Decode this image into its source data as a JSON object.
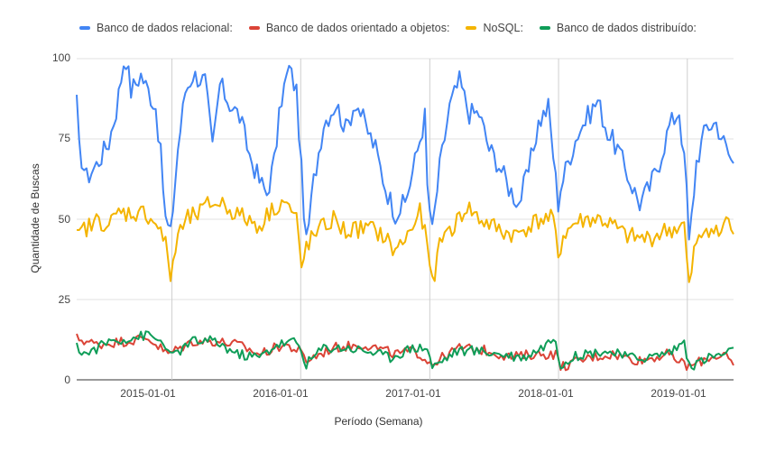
{
  "chart_data": {
    "type": "line",
    "title": "",
    "xlabel": "Período (Semana)",
    "ylabel": "Quantidade de Buscas",
    "ylim": [
      0,
      100
    ],
    "yticks": [
      0,
      25,
      50,
      75,
      100
    ],
    "xticks": [
      "2015-01-01",
      "2016-01-01",
      "2017-01-01",
      "2018-01-01",
      "2019-01-01"
    ],
    "xrange": [
      "2014-04-06",
      "2019-05-12"
    ],
    "grid": true,
    "legend_position": "top",
    "series": [
      {
        "name": "Banco de dados relacional:",
        "color": "#4285f4",
        "key": "relational",
        "anchors": [
          [
            "2014-04-06",
            86
          ],
          [
            "2014-04-13",
            72
          ],
          [
            "2014-05-04",
            63
          ],
          [
            "2014-06-01",
            67
          ],
          [
            "2014-07-06",
            74
          ],
          [
            "2014-07-27",
            84
          ],
          [
            "2014-08-17",
            99
          ],
          [
            "2014-08-24",
            100
          ],
          [
            "2014-09-07",
            90
          ],
          [
            "2014-10-05",
            95
          ],
          [
            "2014-10-26",
            90
          ],
          [
            "2014-11-16",
            85
          ],
          [
            "2014-11-30",
            70
          ],
          [
            "2014-12-14",
            50
          ],
          [
            "2014-12-28",
            45
          ],
          [
            "2015-01-18",
            72
          ],
          [
            "2015-02-08",
            90
          ],
          [
            "2015-03-01",
            95
          ],
          [
            "2015-04-05",
            93
          ],
          [
            "2015-04-26",
            72
          ],
          [
            "2015-05-17",
            92
          ],
          [
            "2015-06-14",
            86
          ],
          [
            "2015-07-12",
            82
          ],
          [
            "2015-08-09",
            70
          ],
          [
            "2015-09-06",
            62
          ],
          [
            "2015-09-27",
            58
          ],
          [
            "2015-10-18",
            68
          ],
          [
            "2015-11-08",
            88
          ],
          [
            "2015-11-29",
            97
          ],
          [
            "2015-12-20",
            90
          ],
          [
            "2016-01-03",
            65
          ],
          [
            "2016-01-17",
            42
          ],
          [
            "2016-02-07",
            62
          ],
          [
            "2016-03-06",
            80
          ],
          [
            "2016-04-10",
            86
          ],
          [
            "2016-05-08",
            78
          ],
          [
            "2016-06-05",
            87
          ],
          [
            "2016-07-03",
            79
          ],
          [
            "2016-07-31",
            72
          ],
          [
            "2016-08-28",
            60
          ],
          [
            "2016-09-25",
            52
          ],
          [
            "2016-10-23",
            55
          ],
          [
            "2016-11-20",
            68
          ],
          [
            "2016-12-18",
            82
          ],
          [
            "2016-12-25",
            60
          ],
          [
            "2017-01-08",
            46
          ],
          [
            "2017-01-29",
            66
          ],
          [
            "2017-02-26",
            85
          ],
          [
            "2017-03-26",
            93
          ],
          [
            "2017-04-23",
            83
          ],
          [
            "2017-05-21",
            83
          ],
          [
            "2017-06-18",
            72
          ],
          [
            "2017-07-16",
            67
          ],
          [
            "2017-08-13",
            60
          ],
          [
            "2017-09-10",
            55
          ],
          [
            "2017-10-08",
            65
          ],
          [
            "2017-11-05",
            80
          ],
          [
            "2017-12-03",
            85
          ],
          [
            "2017-12-31",
            55
          ],
          [
            "2018-01-07",
            60
          ],
          [
            "2018-01-28",
            68
          ],
          [
            "2018-02-25",
            77
          ],
          [
            "2018-03-25",
            82
          ],
          [
            "2018-04-22",
            87
          ],
          [
            "2018-05-20",
            77
          ],
          [
            "2018-06-17",
            72
          ],
          [
            "2018-07-22",
            62
          ],
          [
            "2018-08-19",
            55
          ],
          [
            "2018-09-16",
            60
          ],
          [
            "2018-10-14",
            68
          ],
          [
            "2018-11-11",
            79
          ],
          [
            "2018-12-09",
            84
          ],
          [
            "2018-12-30",
            60
          ],
          [
            "2019-01-06",
            42
          ],
          [
            "2019-01-27",
            68
          ],
          [
            "2019-02-24",
            79
          ],
          [
            "2019-03-24",
            80
          ],
          [
            "2019-04-21",
            72
          ],
          [
            "2019-05-12",
            67
          ]
        ]
      },
      {
        "name": "Banco de dados orientado a objetos:",
        "color": "#db4437",
        "key": "object",
        "anchors": [
          [
            "2014-04-06",
            13
          ],
          [
            "2014-06-01",
            11
          ],
          [
            "2014-08-17",
            12
          ],
          [
            "2014-10-26",
            13
          ],
          [
            "2014-12-21",
            8
          ],
          [
            "2015-03-01",
            12
          ],
          [
            "2015-05-03",
            12
          ],
          [
            "2015-07-05",
            11
          ],
          [
            "2015-09-06",
            8
          ],
          [
            "2015-11-15",
            11
          ],
          [
            "2015-12-27",
            9
          ],
          [
            "2016-01-17",
            6
          ],
          [
            "2016-04-03",
            10
          ],
          [
            "2016-07-03",
            11
          ],
          [
            "2016-09-25",
            8
          ],
          [
            "2016-11-20",
            9
          ],
          [
            "2017-01-08",
            5
          ],
          [
            "2017-03-26",
            10
          ],
          [
            "2017-06-18",
            9
          ],
          [
            "2017-08-20",
            7
          ],
          [
            "2017-10-22",
            8
          ],
          [
            "2017-12-24",
            8
          ],
          [
            "2018-01-07",
            4
          ],
          [
            "2018-04-01",
            7
          ],
          [
            "2018-06-03",
            8
          ],
          [
            "2018-08-19",
            6
          ],
          [
            "2018-11-04",
            8
          ],
          [
            "2019-01-06",
            4
          ],
          [
            "2019-03-03",
            7
          ],
          [
            "2019-04-21",
            8
          ],
          [
            "2019-05-12",
            3
          ]
        ]
      },
      {
        "name": "NoSQL:",
        "color": "#f4b400",
        "key": "nosql",
        "anchors": [
          [
            "2014-04-06",
            44
          ],
          [
            "2014-04-27",
            47
          ],
          [
            "2014-05-18",
            48
          ],
          [
            "2014-06-08",
            50
          ],
          [
            "2014-07-06",
            48
          ],
          [
            "2014-08-03",
            52
          ],
          [
            "2014-09-07",
            52
          ],
          [
            "2014-10-19",
            52
          ],
          [
            "2014-11-23",
            48
          ],
          [
            "2014-12-14",
            42
          ],
          [
            "2014-12-28",
            32
          ],
          [
            "2015-01-18",
            45
          ],
          [
            "2015-02-15",
            50
          ],
          [
            "2015-03-22",
            52
          ],
          [
            "2015-04-19",
            55
          ],
          [
            "2015-05-24",
            55
          ],
          [
            "2015-06-28",
            52
          ],
          [
            "2015-08-02",
            50
          ],
          [
            "2015-09-06",
            48
          ],
          [
            "2015-10-11",
            53
          ],
          [
            "2015-11-15",
            56
          ],
          [
            "2015-12-20",
            50
          ],
          [
            "2016-01-03",
            34
          ],
          [
            "2016-01-17",
            42
          ],
          [
            "2016-02-28",
            47
          ],
          [
            "2016-04-03",
            50
          ],
          [
            "2016-05-08",
            46
          ],
          [
            "2016-06-12",
            47
          ],
          [
            "2016-07-17",
            47
          ],
          [
            "2016-08-21",
            45
          ],
          [
            "2016-09-25",
            40
          ],
          [
            "2016-10-30",
            45
          ],
          [
            "2016-12-04",
            52
          ],
          [
            "2016-12-18",
            46
          ],
          [
            "2017-01-08",
            30
          ],
          [
            "2017-02-05",
            45
          ],
          [
            "2017-03-12",
            48
          ],
          [
            "2017-04-16",
            54
          ],
          [
            "2017-05-21",
            50
          ],
          [
            "2017-06-25",
            48
          ],
          [
            "2017-07-30",
            46
          ],
          [
            "2017-09-03",
            45
          ],
          [
            "2017-10-08",
            48
          ],
          [
            "2017-11-12",
            50
          ],
          [
            "2017-12-17",
            50
          ],
          [
            "2017-12-31",
            38
          ],
          [
            "2018-01-14",
            45
          ],
          [
            "2018-02-18",
            49
          ],
          [
            "2018-03-25",
            50
          ],
          [
            "2018-04-29",
            50
          ],
          [
            "2018-06-03",
            48
          ],
          [
            "2018-07-08",
            45
          ],
          [
            "2018-08-12",
            44
          ],
          [
            "2018-09-16",
            44
          ],
          [
            "2018-10-21",
            46
          ],
          [
            "2018-11-25",
            47
          ],
          [
            "2018-12-23",
            48
          ],
          [
            "2019-01-06",
            28
          ],
          [
            "2019-01-20",
            40
          ],
          [
            "2019-02-24",
            48
          ],
          [
            "2019-03-31",
            45
          ],
          [
            "2019-04-21",
            50
          ],
          [
            "2019-05-12",
            46
          ]
        ]
      },
      {
        "name": "Banco de dados distribuído:",
        "color": "#0f9d58",
        "key": "distributed",
        "anchors": [
          [
            "2014-04-06",
            10
          ],
          [
            "2014-05-04",
            8
          ],
          [
            "2014-07-06",
            12
          ],
          [
            "2014-09-07",
            13
          ],
          [
            "2014-10-26",
            14
          ],
          [
            "2014-12-14",
            11
          ],
          [
            "2014-12-28",
            7
          ],
          [
            "2015-03-01",
            12
          ],
          [
            "2015-05-03",
            12
          ],
          [
            "2015-07-05",
            8
          ],
          [
            "2015-09-06",
            7
          ],
          [
            "2015-10-25",
            11
          ],
          [
            "2015-12-20",
            12
          ],
          [
            "2016-01-17",
            5
          ],
          [
            "2016-03-06",
            10
          ],
          [
            "2016-05-08",
            10
          ],
          [
            "2016-07-10",
            9
          ],
          [
            "2016-09-11",
            7
          ],
          [
            "2016-11-13",
            10
          ],
          [
            "2016-12-25",
            10
          ],
          [
            "2017-01-08",
            4
          ],
          [
            "2017-03-19",
            9
          ],
          [
            "2017-05-21",
            9
          ],
          [
            "2017-07-23",
            8
          ],
          [
            "2017-09-24",
            7
          ],
          [
            "2017-11-12",
            10
          ],
          [
            "2017-12-17",
            13
          ],
          [
            "2018-01-07",
            5
          ],
          [
            "2018-03-04",
            8
          ],
          [
            "2018-05-13",
            9
          ],
          [
            "2018-07-15",
            7
          ],
          [
            "2018-09-16",
            7
          ],
          [
            "2018-11-18",
            9
          ],
          [
            "2018-12-23",
            12
          ],
          [
            "2019-01-06",
            4
          ],
          [
            "2019-03-03",
            7
          ],
          [
            "2019-04-14",
            8
          ],
          [
            "2019-05-12",
            9
          ]
        ]
      }
    ]
  }
}
